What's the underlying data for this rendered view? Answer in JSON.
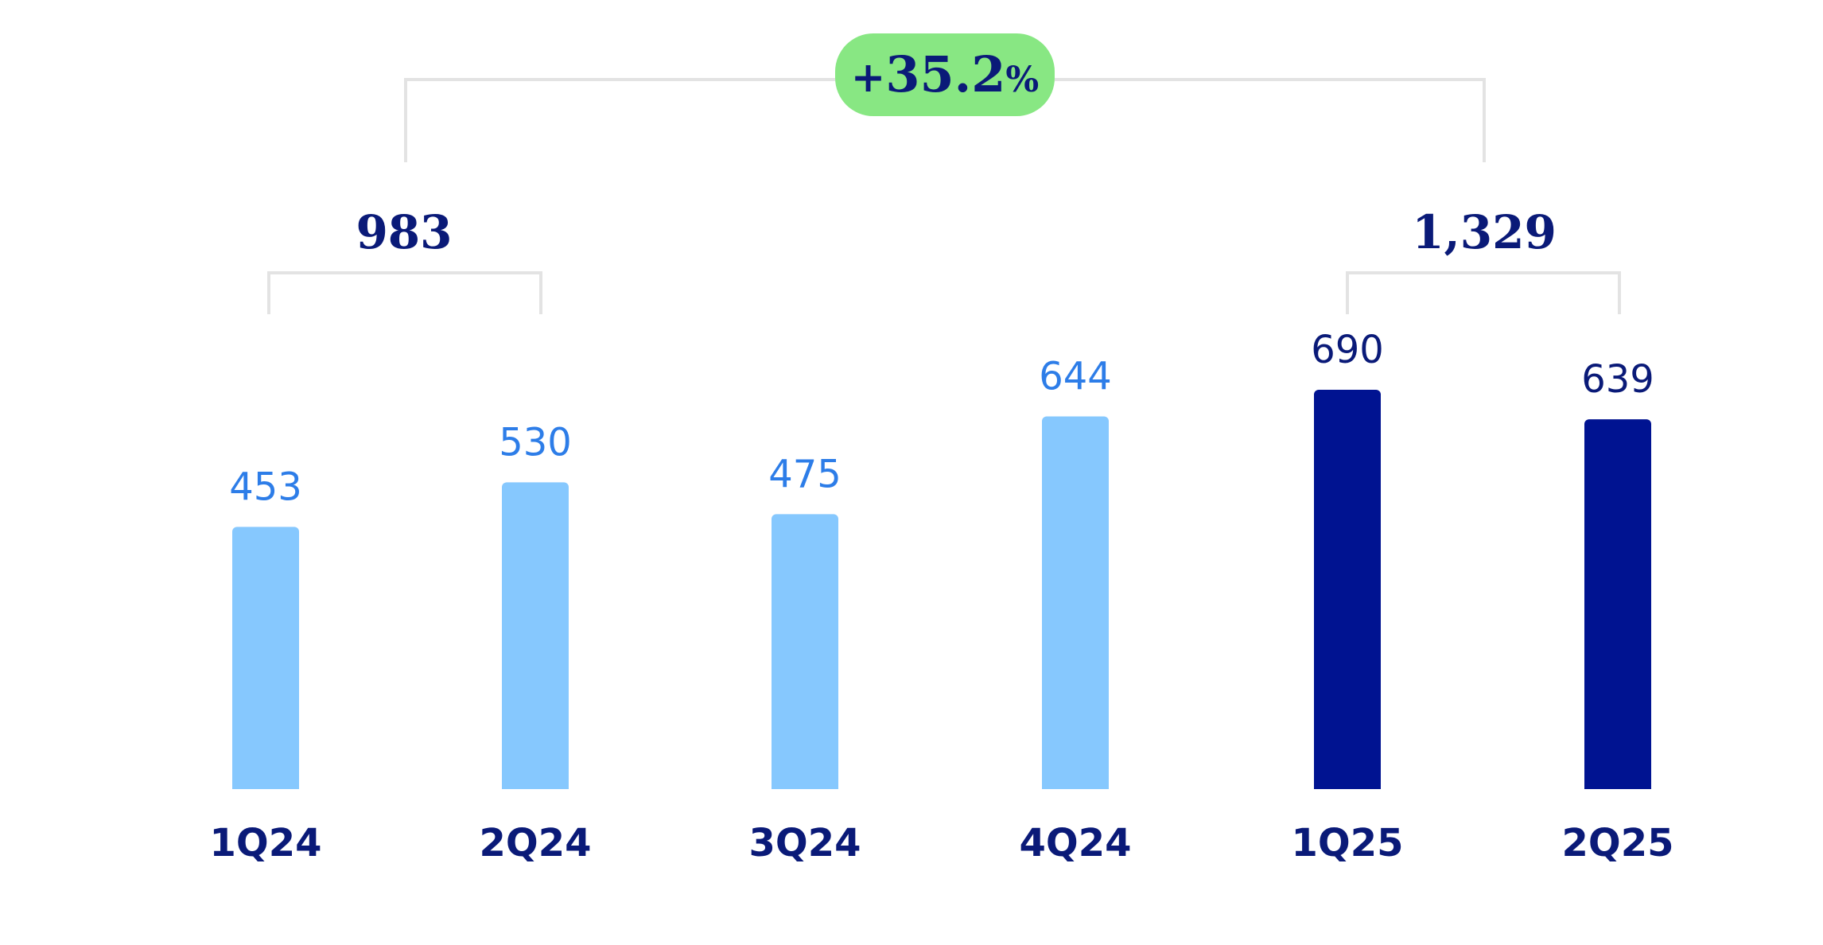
{
  "chart_data": {
    "type": "bar",
    "title": "",
    "xlabel": "",
    "ylabel": "",
    "categories": [
      "1Q24",
      "2Q24",
      "3Q24",
      "4Q24",
      "1Q25",
      "2Q25"
    ],
    "values": [
      453,
      530,
      475,
      644,
      690,
      639
    ],
    "value_labels": [
      "453",
      "530",
      "475",
      "644",
      "690",
      "639"
    ],
    "ylim": [
      0,
      690
    ],
    "grid": false,
    "legend": "none",
    "groups": [
      {
        "label": "983",
        "members": [
          "1Q24",
          "2Q24"
        ]
      },
      {
        "label": "1,329",
        "members": [
          "1Q25",
          "2Q25"
        ]
      }
    ],
    "growth": {
      "sign": "+",
      "value": "35.2",
      "unit": "%"
    }
  },
  "colors": {
    "bar_2024": "#86c8fe",
    "bar_2025": "#001391",
    "label_2024": "#2d7de8",
    "label_2025": "#0a1a78",
    "tick": "#0a1a78",
    "bracket": "#e3e3e3",
    "badge_bg": "#88e783",
    "badge_text": "#0a1a78"
  }
}
